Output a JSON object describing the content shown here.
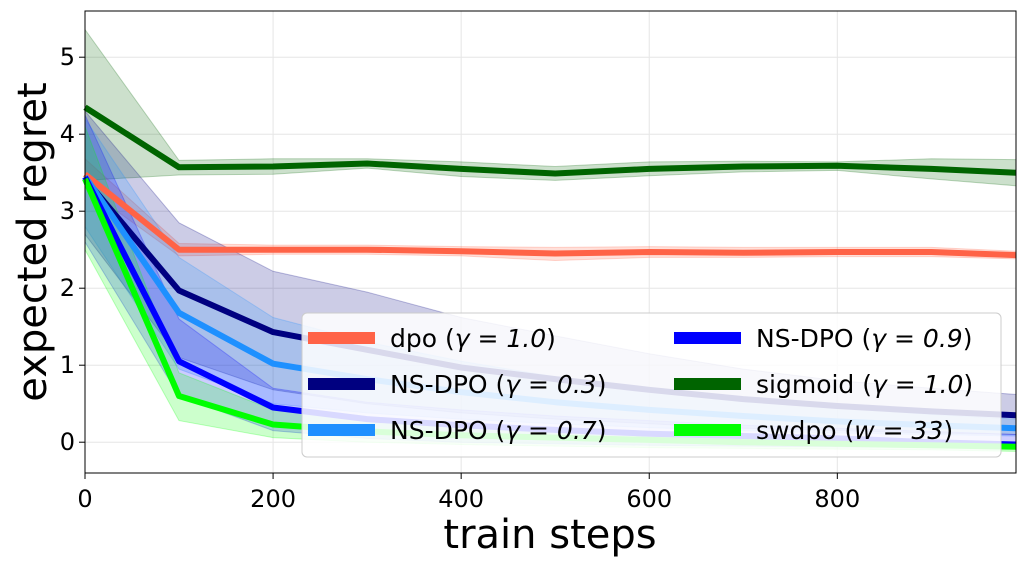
{
  "chart_data": {
    "type": "line",
    "title": "",
    "xlabel": "train steps",
    "ylabel": "expected regret",
    "xlim": [
      0,
      990
    ],
    "ylim": [
      -0.4,
      5.6
    ],
    "grid": true,
    "legend_position": "lower-right",
    "legend_columns": 2,
    "x_ticks": [
      "0",
      "200",
      "400",
      "600",
      "800"
    ],
    "y_ticks": [
      "0",
      "1",
      "2",
      "3",
      "4",
      "5"
    ],
    "x": [
      0,
      100,
      200,
      300,
      400,
      500,
      600,
      700,
      800,
      900,
      990
    ],
    "series": [
      {
        "legend_text": "dpo (",
        "legend_param": "γ = 1.0",
        "color": "#ff6347",
        "values": [
          3.48,
          2.5,
          2.5,
          2.5,
          2.48,
          2.45,
          2.47,
          2.46,
          2.47,
          2.47,
          2.43
        ],
        "lower": [
          3.3,
          2.42,
          2.44,
          2.44,
          2.42,
          2.36,
          2.4,
          2.4,
          2.41,
          2.41,
          2.38
        ],
        "upper": [
          3.68,
          2.58,
          2.56,
          2.56,
          2.54,
          2.53,
          2.54,
          2.53,
          2.53,
          2.53,
          2.48
        ]
      },
      {
        "legend_text": "NS-DPO (",
        "legend_param": "γ = 0.3",
        "color": "#000080",
        "values": [
          3.42,
          1.97,
          1.43,
          1.2,
          0.97,
          0.82,
          0.68,
          0.56,
          0.47,
          0.4,
          0.35
        ],
        "lower": [
          2.7,
          1.1,
          0.68,
          0.5,
          0.38,
          0.3,
          0.24,
          0.18,
          0.15,
          0.12,
          0.1
        ],
        "upper": [
          4.3,
          2.85,
          2.22,
          1.95,
          1.62,
          1.38,
          1.15,
          0.95,
          0.8,
          0.7,
          0.62
        ]
      },
      {
        "legend_text": "NS-DPO (",
        "legend_param": "γ = 0.7",
        "color": "#1e90ff",
        "values": [
          3.45,
          1.68,
          1.02,
          0.82,
          0.65,
          0.52,
          0.42,
          0.34,
          0.27,
          0.22,
          0.18
        ],
        "lower": [
          2.8,
          0.95,
          0.5,
          0.38,
          0.3,
          0.24,
          0.19,
          0.15,
          0.12,
          0.1,
          0.08
        ],
        "upper": [
          4.2,
          2.4,
          1.62,
          1.3,
          1.05,
          0.85,
          0.7,
          0.56,
          0.45,
          0.36,
          0.3
        ]
      },
      {
        "legend_text": "NS-DPO (",
        "legend_param": "γ = 0.9",
        "color": "#0000ff",
        "values": [
          3.44,
          1.05,
          0.45,
          0.3,
          0.22,
          0.16,
          0.11,
          0.08,
          0.05,
          0.0,
          -0.03
        ],
        "lower": [
          2.6,
          0.6,
          0.15,
          0.05,
          0.0,
          -0.02,
          -0.04,
          -0.05,
          -0.06,
          -0.07,
          -0.08
        ],
        "upper": [
          4.25,
          1.6,
          0.7,
          0.52,
          0.42,
          0.34,
          0.28,
          0.22,
          0.18,
          0.14,
          0.1
        ]
      },
      {
        "legend_text": "sigmoid (",
        "legend_param": "γ = 1.0",
        "color": "#006400",
        "values": [
          4.35,
          3.57,
          3.58,
          3.62,
          3.55,
          3.49,
          3.55,
          3.58,
          3.59,
          3.55,
          3.5
        ],
        "lower": [
          3.4,
          3.47,
          3.48,
          3.56,
          3.45,
          3.4,
          3.46,
          3.51,
          3.53,
          3.42,
          3.33
        ],
        "upper": [
          5.36,
          3.66,
          3.68,
          3.68,
          3.64,
          3.58,
          3.64,
          3.65,
          3.64,
          3.68,
          3.67
        ]
      },
      {
        "legend_text": "swdpo (",
        "legend_param": "w = 33",
        "color": "#00ff00",
        "values": [
          3.42,
          0.6,
          0.23,
          0.14,
          0.09,
          0.06,
          0.03,
          0.0,
          -0.02,
          -0.04,
          -0.06
        ],
        "lower": [
          2.5,
          0.28,
          0.06,
          0.0,
          -0.03,
          -0.05,
          -0.07,
          -0.08,
          -0.09,
          -0.1,
          -0.12
        ],
        "upper": [
          4.1,
          0.9,
          0.42,
          0.3,
          0.22,
          0.17,
          0.12,
          0.09,
          0.06,
          0.03,
          0.0
        ]
      }
    ]
  }
}
